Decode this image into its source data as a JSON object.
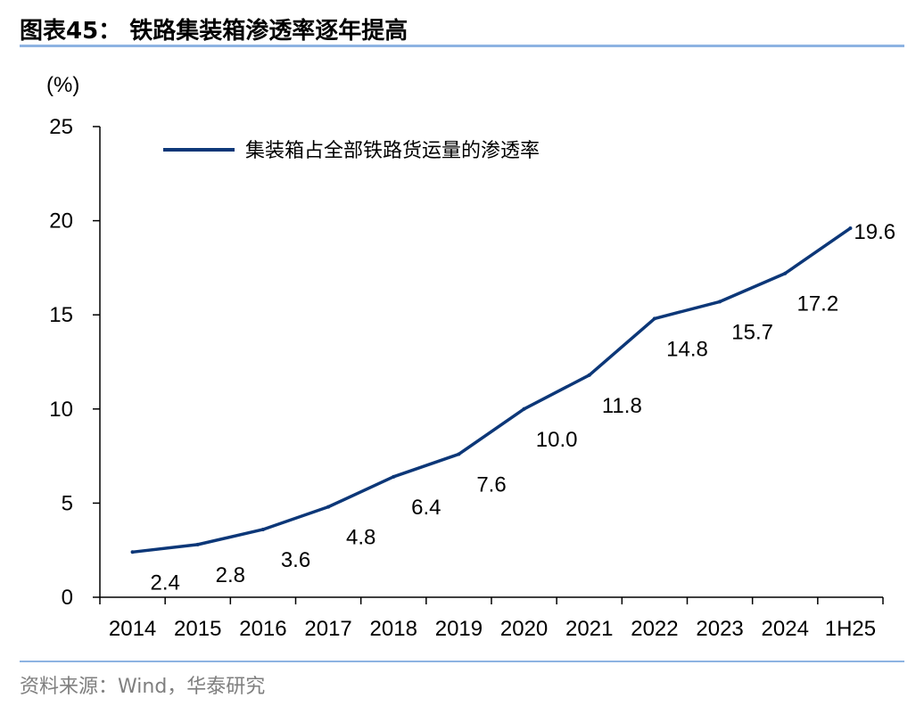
{
  "figure": {
    "title": "图表45：  铁路集装箱渗透率逐年提高",
    "source": "资料来源：Wind，华泰研究"
  },
  "colors": {
    "series": "#0c3778",
    "rule": "#8db3e2",
    "axis": "#000000",
    "source": "#7f7f7f"
  },
  "chart_data": {
    "type": "line",
    "title": "",
    "unit_label": "(%)",
    "xlabel": "",
    "ylabel": "(%)",
    "categories": [
      "2014",
      "2015",
      "2016",
      "2017",
      "2018",
      "2019",
      "2020",
      "2021",
      "2022",
      "2023",
      "2024",
      "1H25"
    ],
    "series": [
      {
        "name": "集装箱占全部铁路货运量的渗透率",
        "values": [
          2.4,
          2.8,
          3.6,
          4.8,
          6.4,
          7.6,
          10.0,
          11.8,
          14.8,
          15.7,
          17.2,
          19.6
        ]
      }
    ],
    "data_labels": [
      "2.4",
      "2.8",
      "3.6",
      "4.8",
      "6.4",
      "7.6",
      "10.0",
      "11.8",
      "14.8",
      "15.7",
      "17.2",
      "19.6"
    ],
    "ylim": [
      0,
      25
    ],
    "yticks": [
      "0",
      "5",
      "10",
      "15",
      "20",
      "25"
    ],
    "grid": false,
    "legend_position": "top-left"
  }
}
